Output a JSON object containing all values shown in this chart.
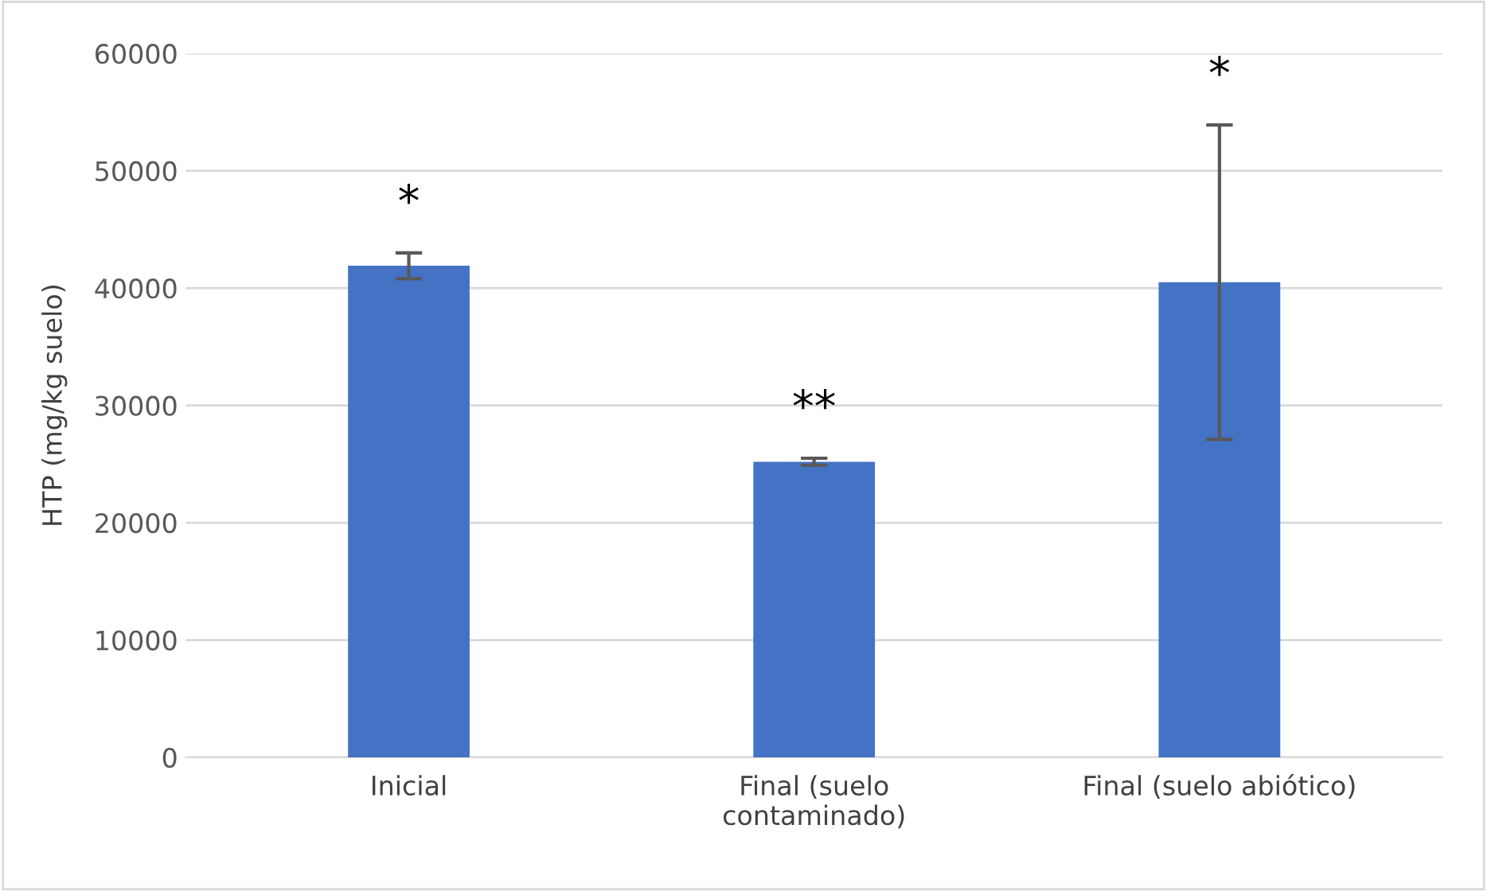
{
  "chart_data": {
    "type": "bar",
    "ylabel": "HTP (mg/kg suelo)",
    "categories": [
      "Inicial",
      "Final (suelo\ncontaminado)",
      "Final (suelo abiótico)"
    ],
    "values": [
      41900,
      25200,
      40500
    ],
    "errors": [
      1100,
      300,
      13400
    ],
    "color": "#4472c4",
    "ylim": [
      0,
      60000
    ],
    "yticks": [
      0,
      10000,
      20000,
      30000,
      40000,
      50000,
      60000
    ],
    "grid": "y",
    "annotations": [
      "*",
      "**",
      "*"
    ]
  }
}
